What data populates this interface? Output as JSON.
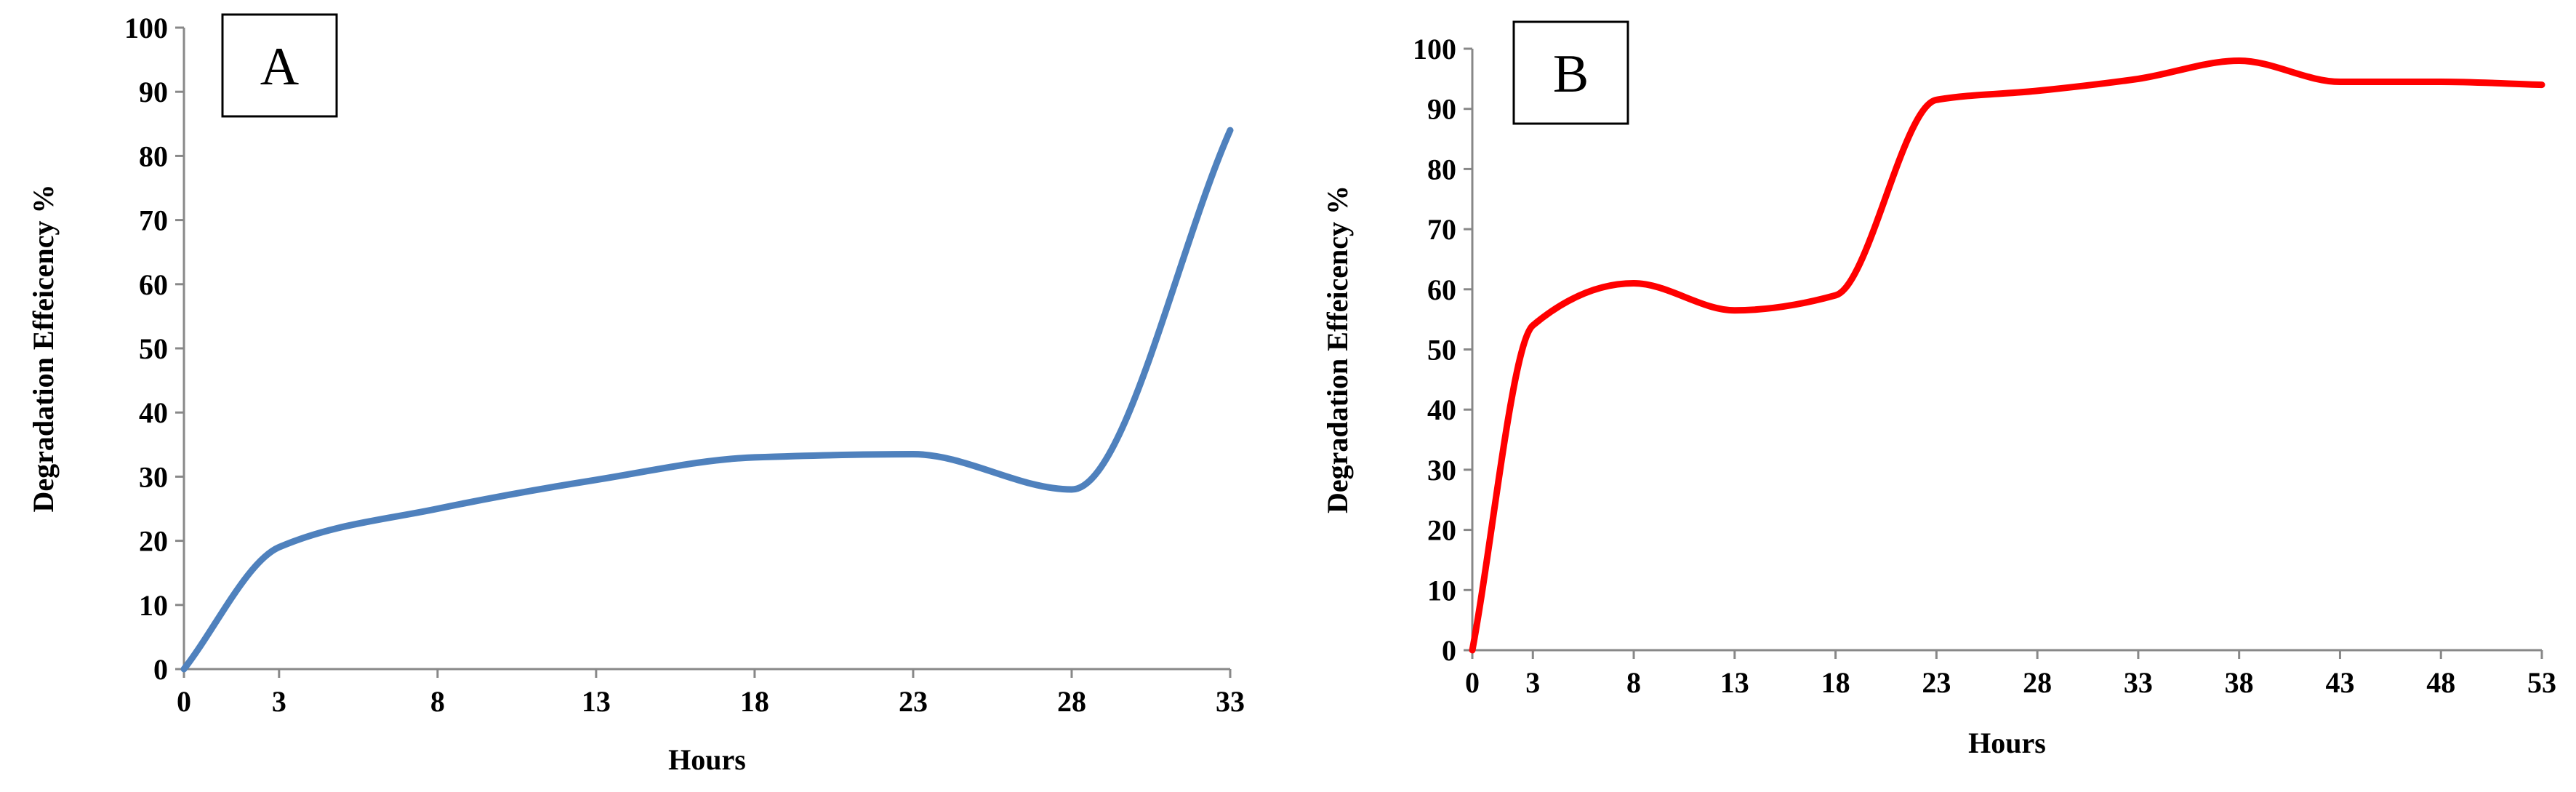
{
  "chart_data": [
    {
      "type": "line",
      "panel_label": "A",
      "xlabel": "Hours",
      "ylabel": "Degradation Effeicency %",
      "x_ticks": [
        0,
        3,
        8,
        13,
        18,
        23,
        28,
        33
      ],
      "y_ticks": [
        0,
        10,
        20,
        30,
        40,
        50,
        60,
        70,
        80,
        90,
        100
      ],
      "ylim": [
        0,
        100
      ],
      "smooth": true,
      "grid": false,
      "series": [
        {
          "color": "#4f81bd",
          "x": [
            0,
            3,
            8,
            13,
            18,
            23,
            28,
            33
          ],
          "y": [
            0,
            19,
            25,
            29.5,
            33,
            33.5,
            28,
            84
          ]
        }
      ]
    },
    {
      "type": "line",
      "panel_label": "B",
      "xlabel": "Hours",
      "ylabel": "Degradation Effeicency %",
      "x_ticks": [
        0,
        3,
        8,
        13,
        18,
        23,
        28,
        33,
        38,
        43,
        48,
        53
      ],
      "y_ticks": [
        0,
        10,
        20,
        30,
        40,
        50,
        60,
        70,
        80,
        90,
        100
      ],
      "ylim": [
        0,
        100
      ],
      "smooth": true,
      "grid": false,
      "series": [
        {
          "color": "#ff0000",
          "x": [
            0,
            3,
            8,
            13,
            18,
            23,
            28,
            33,
            38,
            43,
            48,
            53
          ],
          "y": [
            0,
            54,
            61,
            56.5,
            59,
            91.5,
            93,
            95,
            98,
            94.5,
            94.5,
            94
          ]
        }
      ]
    }
  ]
}
